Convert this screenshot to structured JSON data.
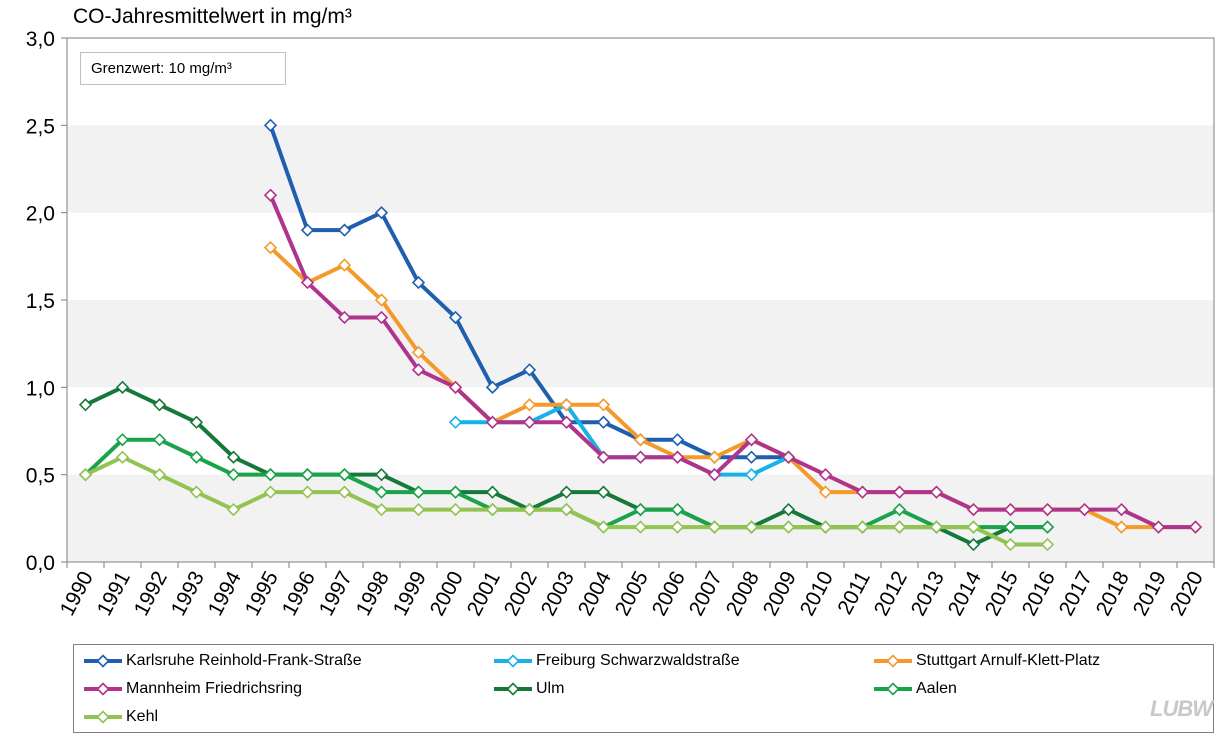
{
  "chart_data": {
    "type": "line",
    "title": "CO-Jahresmittelwert in mg/m³",
    "annotation": "Grenzwert: 10 mg/m³",
    "xlabel": "",
    "ylabel": "",
    "ylim": [
      0,
      3
    ],
    "y_ticks": [
      0,
      0.5,
      1.0,
      1.5,
      2.0,
      2.5,
      3.0
    ],
    "y_tick_labels": [
      "0,0",
      "0,5",
      "1,0",
      "1,5",
      "2,0",
      "2,5",
      "3,0"
    ],
    "categories": [
      "1990",
      "1991",
      "1992",
      "1993",
      "1994",
      "1995",
      "1996",
      "1997",
      "1998",
      "1999",
      "2000",
      "2001",
      "2002",
      "2003",
      "2004",
      "2005",
      "2006",
      "2007",
      "2008",
      "2009",
      "2010",
      "2011",
      "2012",
      "2013",
      "2014",
      "2015",
      "2016",
      "2017",
      "2018",
      "2019",
      "2020"
    ],
    "series": [
      {
        "name": "Karlsruhe Reinhold-Frank-Straße",
        "color": "#1f5fae",
        "values": [
          null,
          null,
          null,
          null,
          null,
          2.5,
          1.9,
          1.9,
          2.0,
          1.6,
          1.4,
          1.0,
          1.1,
          0.8,
          0.8,
          0.7,
          0.7,
          0.6,
          0.6,
          0.6,
          null,
          null,
          null,
          null,
          null,
          null,
          null,
          null,
          null,
          null,
          null
        ]
      },
      {
        "name": "Freiburg Schwarzwaldstraße",
        "color": "#19b2e8",
        "values": [
          null,
          null,
          null,
          null,
          null,
          null,
          null,
          null,
          null,
          null,
          0.8,
          0.8,
          0.8,
          0.9,
          0.6,
          0.6,
          0.6,
          0.5,
          0.5,
          0.6,
          null,
          null,
          null,
          null,
          null,
          null,
          null,
          null,
          null,
          null,
          null
        ]
      },
      {
        "name": "Stuttgart Arnulf-Klett-Platz",
        "color": "#f39a2b",
        "values": [
          null,
          null,
          null,
          null,
          null,
          1.8,
          1.6,
          1.7,
          1.5,
          1.2,
          1.0,
          0.8,
          0.9,
          0.9,
          0.9,
          0.7,
          0.6,
          0.6,
          0.7,
          0.6,
          0.4,
          0.4,
          0.4,
          0.4,
          0.3,
          0.3,
          0.3,
          0.3,
          0.2,
          0.2,
          0.2
        ]
      },
      {
        "name": "Mannheim Friedrichsring",
        "color": "#b0338c",
        "values": [
          null,
          null,
          null,
          null,
          null,
          2.1,
          1.6,
          1.4,
          1.4,
          1.1,
          1.0,
          0.8,
          0.8,
          0.8,
          0.6,
          0.6,
          0.6,
          0.5,
          0.7,
          0.6,
          0.5,
          0.4,
          0.4,
          0.4,
          0.3,
          0.3,
          0.3,
          0.3,
          0.3,
          0.2,
          0.2
        ]
      },
      {
        "name": "Ulm",
        "color": "#16793a",
        "values": [
          0.9,
          1.0,
          0.9,
          0.8,
          0.6,
          0.5,
          0.5,
          0.5,
          0.5,
          0.4,
          0.4,
          0.4,
          0.3,
          0.4,
          0.4,
          0.3,
          0.3,
          0.2,
          0.2,
          0.3,
          0.2,
          0.2,
          0.2,
          0.2,
          0.1,
          0.2,
          0.2,
          null,
          null,
          null,
          null
        ]
      },
      {
        "name": "Aalen",
        "color": "#1aa34a",
        "values": [
          0.5,
          0.7,
          0.7,
          0.6,
          0.5,
          0.5,
          0.5,
          0.5,
          0.4,
          0.4,
          0.4,
          0.3,
          0.3,
          0.3,
          0.2,
          0.3,
          0.3,
          0.2,
          0.2,
          0.2,
          0.2,
          0.2,
          0.3,
          0.2,
          0.2,
          0.2,
          0.2,
          null,
          null,
          null,
          null
        ]
      },
      {
        "name": "Kehl",
        "color": "#92c353",
        "values": [
          0.5,
          0.6,
          0.5,
          0.4,
          0.3,
          0.4,
          0.4,
          0.4,
          0.3,
          0.3,
          0.3,
          0.3,
          0.3,
          0.3,
          0.2,
          0.2,
          0.2,
          0.2,
          0.2,
          0.2,
          0.2,
          0.2,
          0.2,
          0.2,
          0.2,
          0.1,
          0.1,
          null,
          null,
          null,
          null
        ]
      }
    ]
  },
  "logo_text": "LUBW"
}
